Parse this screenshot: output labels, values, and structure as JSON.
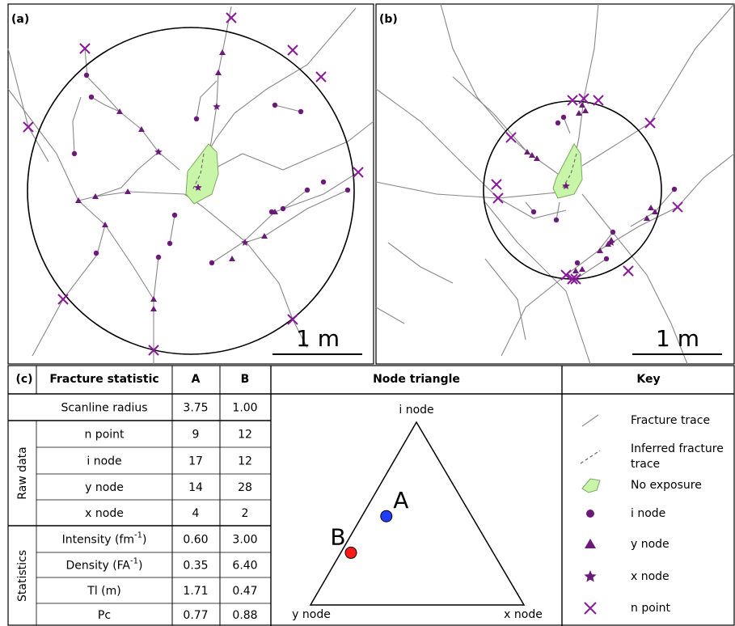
{
  "panels": [
    {
      "label": "(a)",
      "scale": "1 m"
    },
    {
      "label": "(b)",
      "scale": "1 m"
    }
  ],
  "table": {
    "label": "(c)",
    "headers": [
      "Fracture statistic",
      "A",
      "B"
    ],
    "rows": [
      {
        "label": "Scanline radius",
        "values": [
          "3.75",
          "1.00"
        ]
      },
      {
        "label": "n point",
        "values": [
          "9",
          "12"
        ]
      },
      {
        "label": "i node",
        "values": [
          "17",
          "12"
        ]
      },
      {
        "label": "y node",
        "values": [
          "14",
          "28"
        ]
      },
      {
        "label": "x node",
        "values": [
          "4",
          "2"
        ]
      },
      {
        "label": "Intensity (fm",
        "sup": "-1",
        "after": ")",
        "values": [
          "0.60",
          "3.00"
        ]
      },
      {
        "label": "Density (FA",
        "sup": "-1",
        "after": ")",
        "values": [
          "0.35",
          "6.40"
        ]
      },
      {
        "label": "Tl (m)",
        "values": [
          "1.71",
          "0.47"
        ]
      },
      {
        "label": "Pc",
        "values": [
          "0.77",
          "0.88"
        ]
      }
    ],
    "groups": [
      "Raw data",
      "Statistics"
    ]
  },
  "triangle": {
    "title": "Node triangle",
    "top": "i node",
    "left": "y node",
    "right": "x node",
    "points": [
      {
        "label": "A",
        "color": "#1f3cff"
      },
      {
        "label": "B",
        "color": "#ff1a1a"
      }
    ]
  },
  "key": {
    "title": "Key",
    "items": [
      [
        "Fracture trace"
      ],
      [
        "Inferred fracture",
        "trace"
      ],
      [
        "No exposure"
      ],
      [
        "i node"
      ],
      [
        "y node"
      ],
      [
        "x node"
      ],
      [
        "n point"
      ]
    ]
  }
}
